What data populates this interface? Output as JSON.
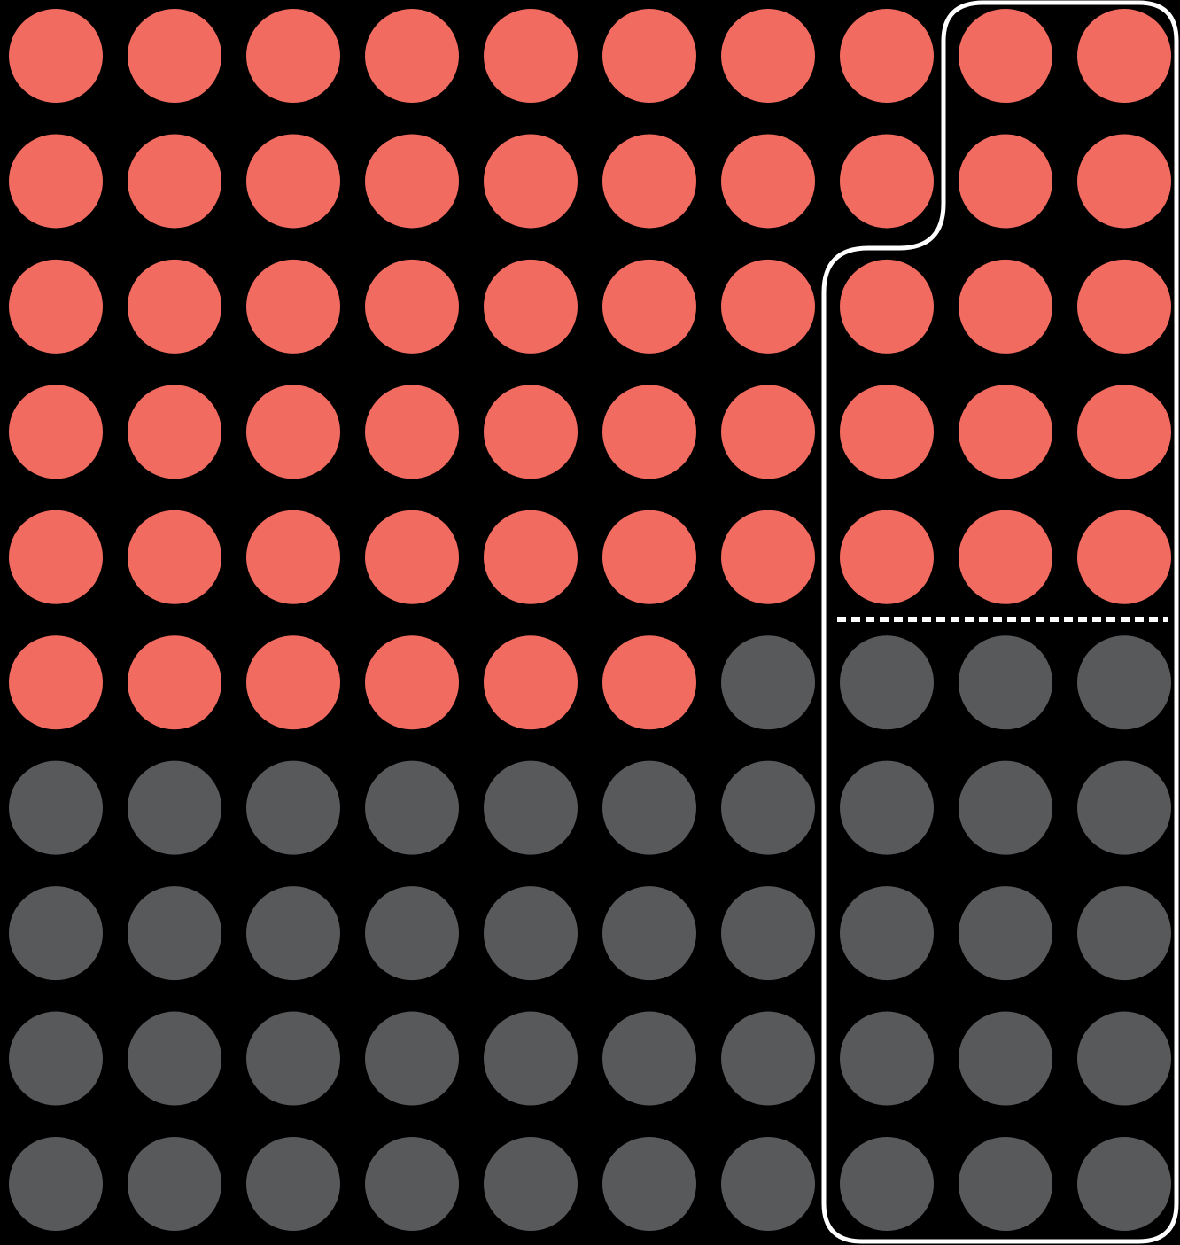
{
  "chart_data": {
    "type": "waffle",
    "rows": 10,
    "columns": 10,
    "values": [
      56,
      44
    ],
    "colors": [
      "#f26b60",
      "#58595b"
    ]
  }
}
